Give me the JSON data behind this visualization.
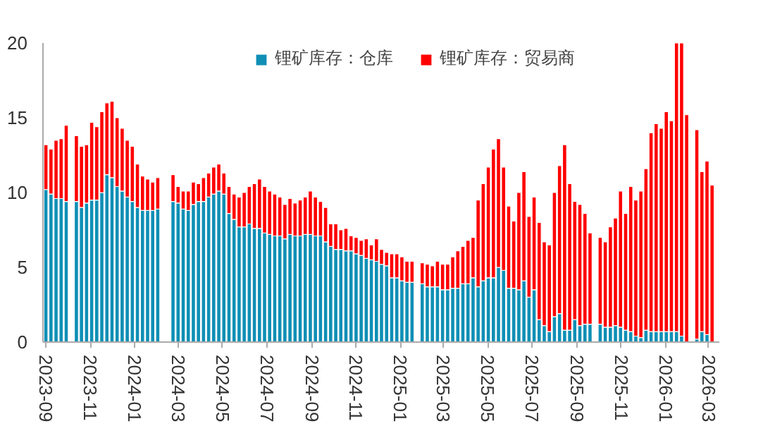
{
  "chart_data": {
    "type": "bar",
    "stacked": true,
    "x": [
      "2023-09-01",
      "2023-09-08",
      "2023-09-15",
      "2023-09-22",
      "2023-09-29",
      "2023-10-06",
      "2023-10-13",
      "2023-10-20",
      "2023-10-27",
      "2023-11-03",
      "2023-11-10",
      "2023-11-17",
      "2023-11-24",
      "2023-12-01",
      "2023-12-08",
      "2023-12-15",
      "2023-12-22",
      "2023-12-29",
      "2024-01-05",
      "2024-01-12",
      "2024-01-19",
      "2024-01-26",
      "2024-02-02",
      "2024-02-09",
      "2024-02-16",
      "2024-02-23",
      "2024-03-01",
      "2024-03-08",
      "2024-03-15",
      "2024-03-22",
      "2024-03-29",
      "2024-04-05",
      "2024-04-12",
      "2024-04-19",
      "2024-04-26",
      "2024-05-03",
      "2024-05-10",
      "2024-05-17",
      "2024-05-24",
      "2024-05-31",
      "2024-06-07",
      "2024-06-14",
      "2024-06-21",
      "2024-06-28",
      "2024-07-05",
      "2024-07-12",
      "2024-07-19",
      "2024-07-26",
      "2024-08-02",
      "2024-08-09",
      "2024-08-16",
      "2024-08-23",
      "2024-08-30",
      "2024-09-06",
      "2024-09-13",
      "2024-09-20",
      "2024-09-27",
      "2024-10-04",
      "2024-10-11",
      "2024-10-18",
      "2024-10-25",
      "2024-11-01",
      "2024-11-08",
      "2024-11-15",
      "2024-11-22",
      "2024-11-29",
      "2024-12-06",
      "2024-12-13",
      "2024-12-20",
      "2024-12-27",
      "2025-01-03",
      "2025-01-10",
      "2025-01-17",
      "2025-01-24",
      "2025-01-31",
      "2025-02-07",
      "2025-02-14",
      "2025-02-21",
      "2025-02-28",
      "2025-03-07",
      "2025-03-14",
      "2025-03-21",
      "2025-03-28",
      "2025-04-04",
      "2025-04-11",
      "2025-04-18",
      "2025-04-25",
      "2025-05-02",
      "2025-05-09",
      "2025-05-16",
      "2025-05-23",
      "2025-05-30",
      "2025-06-06",
      "2025-06-13",
      "2025-06-20",
      "2025-06-27",
      "2025-07-04",
      "2025-07-11",
      "2025-07-18",
      "2025-07-25",
      "2025-08-01",
      "2025-08-08",
      "2025-08-15",
      "2025-08-22",
      "2025-08-29",
      "2025-09-05",
      "2025-09-12",
      "2025-09-19",
      "2025-09-26",
      "2025-10-03",
      "2025-10-10",
      "2025-10-17",
      "2025-10-24",
      "2025-10-31",
      "2025-11-07",
      "2025-11-14",
      "2025-11-21",
      "2025-11-28",
      "2025-12-05",
      "2025-12-12",
      "2025-12-19",
      "2025-12-26",
      "2026-01-02",
      "2026-01-09",
      "2026-01-16",
      "2026-01-23",
      "2026-01-30",
      "2026-02-06",
      "2026-02-13",
      "2026-02-20",
      "2026-02-27",
      "2026-03-06"
    ],
    "series": [
      {
        "name": "锂矿库存：仓库",
        "color": "#0f8fb5",
        "values": [
          10.2,
          9.9,
          9.6,
          9.6,
          9.4,
          null,
          9.4,
          9.0,
          9.3,
          9.5,
          9.5,
          10.0,
          11.2,
          11.0,
          10.4,
          10.1,
          9.7,
          9.4,
          9.0,
          8.8,
          8.8,
          8.8,
          8.9,
          null,
          null,
          9.4,
          9.3,
          8.9,
          8.8,
          9.2,
          9.4,
          9.4,
          9.7,
          9.9,
          10.1,
          9.9,
          8.6,
          8.2,
          7.7,
          7.7,
          7.9,
          7.6,
          7.6,
          7.3,
          7.2,
          7.1,
          7.1,
          6.9,
          7.2,
          7.1,
          7.1,
          7.2,
          7.2,
          7.1,
          7.1,
          6.7,
          6.4,
          6.2,
          6.2,
          6.1,
          6.1,
          5.9,
          5.8,
          5.6,
          5.5,
          5.4,
          5.2,
          5.1,
          4.3,
          4.3,
          4.1,
          4.0,
          4.0,
          null,
          3.9,
          3.7,
          3.7,
          3.7,
          3.5,
          3.5,
          3.6,
          3.6,
          3.9,
          3.9,
          4.3,
          3.7,
          4.1,
          4.3,
          4.3,
          5.0,
          4.8,
          3.6,
          3.6,
          3.5,
          4.1,
          3.0,
          3.5,
          1.5,
          1.1,
          0.7,
          1.7,
          1.9,
          0.8,
          0.8,
          1.5,
          1.1,
          1.2,
          1.2,
          null,
          1.2,
          1.0,
          1.0,
          1.1,
          1.0,
          0.8,
          0.7,
          0.4,
          0.3,
          0.8,
          0.7,
          0.7,
          0.7,
          0.7,
          0.7,
          0.7,
          0.4,
          0,
          null,
          0.2,
          0.7,
          0.5,
          null
        ]
      },
      {
        "name": "锂矿库存：贸易商",
        "color": "#ff0000",
        "values": [
          3.0,
          3.0,
          3.9,
          4.0,
          5.1,
          null,
          4.4,
          4.1,
          3.9,
          5.2,
          4.9,
          5.4,
          4.8,
          5.1,
          4.6,
          4.2,
          3.8,
          3.7,
          2.9,
          2.3,
          2.1,
          1.9,
          2.1,
          null,
          null,
          1.8,
          1.1,
          1.2,
          1.3,
          1.5,
          1.2,
          1.6,
          1.6,
          1.8,
          1.8,
          1.4,
          1.8,
          1.7,
          2.0,
          2.3,
          2.5,
          3.0,
          3.3,
          3.1,
          2.9,
          2.8,
          2.6,
          2.3,
          2.4,
          2.2,
          2.4,
          2.5,
          2.9,
          2.6,
          2.3,
          2.3,
          1.5,
          1.7,
          1.3,
          1.5,
          1.0,
          1.1,
          1.0,
          1.3,
          1.0,
          1.5,
          1.0,
          0.9,
          1.6,
          1.6,
          1.6,
          1.4,
          1.4,
          null,
          1.4,
          1.5,
          1.4,
          1.7,
          1.7,
          1.7,
          2.1,
          2.5,
          2.5,
          2.9,
          2.7,
          5.8,
          6.5,
          7.4,
          8.6,
          8.6,
          6.9,
          5.5,
          4.5,
          6.5,
          7.3,
          5.4,
          6.2,
          6.5,
          5.6,
          5.8,
          8.3,
          9.9,
          12.4,
          9.8,
          7.9,
          8.1,
          7.4,
          6.1,
          null,
          5.8,
          5.7,
          6.7,
          7.2,
          9.1,
          7.8,
          9.7,
          9.1,
          9.8,
          10.8,
          13.3,
          13.9,
          13.6,
          14.7,
          14.1,
          19.3,
          19.6,
          15.2,
          null,
          14.0,
          10.7,
          11.6,
          10.5
        ]
      }
    ],
    "xlim": [
      "2023-08-28",
      "2026-03-16"
    ],
    "xticks": [
      "2023-09",
      "2023-11",
      "2024-01",
      "2024-03",
      "2024-05",
      "2024-07",
      "2024-09",
      "2024-11",
      "2025-01",
      "2025-03",
      "2025-05",
      "2025-07",
      "2025-09",
      "2025-11",
      "2026-01",
      "2026-03"
    ],
    "ylim": [
      0,
      20
    ],
    "yticks": [
      0,
      5,
      10,
      15,
      20
    ],
    "grid": false,
    "legend": "top"
  }
}
